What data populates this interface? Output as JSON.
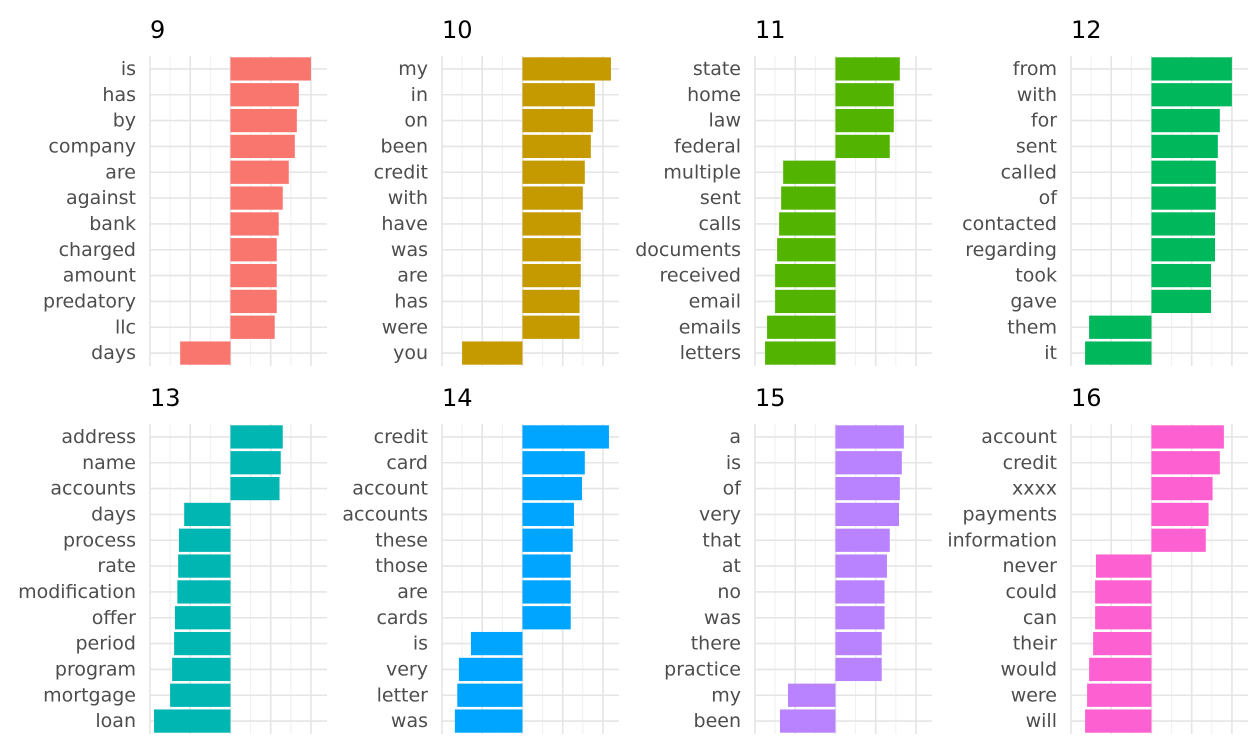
{
  "chart_data": {
    "type": "bar",
    "orientation": "horizontal",
    "layout": "facet grid, 2 rows x 4 columns",
    "grid": true,
    "legend": "none",
    "xlabel": "",
    "ylabel": "",
    "panels": [
      {
        "title": "9",
        "color": "#F8766D",
        "categories": [
          "is",
          "has",
          "by",
          "company",
          "are",
          "against",
          "bank",
          "charged",
          "amount",
          "predatory",
          "llc",
          "days"
        ],
        "values": [
          2.0,
          1.7,
          1.65,
          1.6,
          1.45,
          1.3,
          1.2,
          1.15,
          1.15,
          1.15,
          1.1,
          -1.25
        ],
        "xlim": [
          -2.0,
          2.4
        ]
      },
      {
        "title": "10",
        "color": "#C49A00",
        "categories": [
          "my",
          "in",
          "on",
          "been",
          "credit",
          "with",
          "have",
          "was",
          "are",
          "has",
          "were",
          "you"
        ],
        "values": [
          2.2,
          1.8,
          1.75,
          1.7,
          1.55,
          1.5,
          1.45,
          1.45,
          1.45,
          1.42,
          1.42,
          -1.5
        ],
        "xlim": [
          -2.0,
          2.4
        ]
      },
      {
        "title": "11",
        "color": "#53B400",
        "categories": [
          "state",
          "home",
          "law",
          "federal",
          "multiple",
          "sent",
          "calls",
          "documents",
          "received",
          "email",
          "emails",
          "letters"
        ],
        "values": [
          1.6,
          1.45,
          1.45,
          1.35,
          -1.3,
          -1.35,
          -1.4,
          -1.45,
          -1.5,
          -1.5,
          -1.7,
          -1.75
        ],
        "xlim": [
          -2.0,
          2.4
        ]
      },
      {
        "title": "12",
        "color": "#00B85C",
        "categories": [
          "from",
          "with",
          "for",
          "sent",
          "called",
          "of",
          "contacted",
          "regarding",
          "took",
          "gave",
          "them",
          "it"
        ],
        "values": [
          2.0,
          2.0,
          1.7,
          1.65,
          1.6,
          1.6,
          1.58,
          1.58,
          1.48,
          1.48,
          -1.55,
          -1.65
        ],
        "xlim": [
          -2.0,
          2.4
        ]
      },
      {
        "title": "13",
        "color": "#00B6B2",
        "categories": [
          "address",
          "name",
          "accounts",
          "days",
          "process",
          "rate",
          "modification",
          "offer",
          "period",
          "program",
          "mortgage",
          "loan"
        ],
        "values": [
          1.3,
          1.25,
          1.22,
          -1.15,
          -1.28,
          -1.3,
          -1.32,
          -1.38,
          -1.4,
          -1.45,
          -1.5,
          -1.9
        ],
        "xlim": [
          -2.0,
          2.4
        ]
      },
      {
        "title": "14",
        "color": "#00A5FF",
        "categories": [
          "credit",
          "card",
          "account",
          "accounts",
          "these",
          "those",
          "are",
          "cards",
          "is",
          "very",
          "letter",
          "was"
        ],
        "values": [
          2.15,
          1.55,
          1.48,
          1.28,
          1.25,
          1.2,
          1.2,
          1.2,
          -1.28,
          -1.58,
          -1.62,
          -1.68
        ],
        "xlim": [
          -2.0,
          2.4
        ]
      },
      {
        "title": "15",
        "color": "#B983FF",
        "categories": [
          "a",
          "is",
          "of",
          "very",
          "that",
          "at",
          "no",
          "was",
          "there",
          "practice",
          "my",
          "been"
        ],
        "values": [
          1.7,
          1.65,
          1.6,
          1.58,
          1.35,
          1.28,
          1.22,
          1.22,
          1.15,
          1.15,
          -1.18,
          -1.38
        ],
        "xlim": [
          -2.0,
          2.4
        ]
      },
      {
        "title": "16",
        "color": "#FD61D1",
        "categories": [
          "account",
          "credit",
          "xxxx",
          "payments",
          "information",
          "never",
          "could",
          "can",
          "their",
          "would",
          "were",
          "will"
        ],
        "values": [
          1.8,
          1.7,
          1.52,
          1.42,
          1.35,
          -1.38,
          -1.4,
          -1.4,
          -1.45,
          -1.55,
          -1.6,
          -1.65
        ],
        "xlim": [
          -2.0,
          2.4
        ]
      }
    ]
  }
}
